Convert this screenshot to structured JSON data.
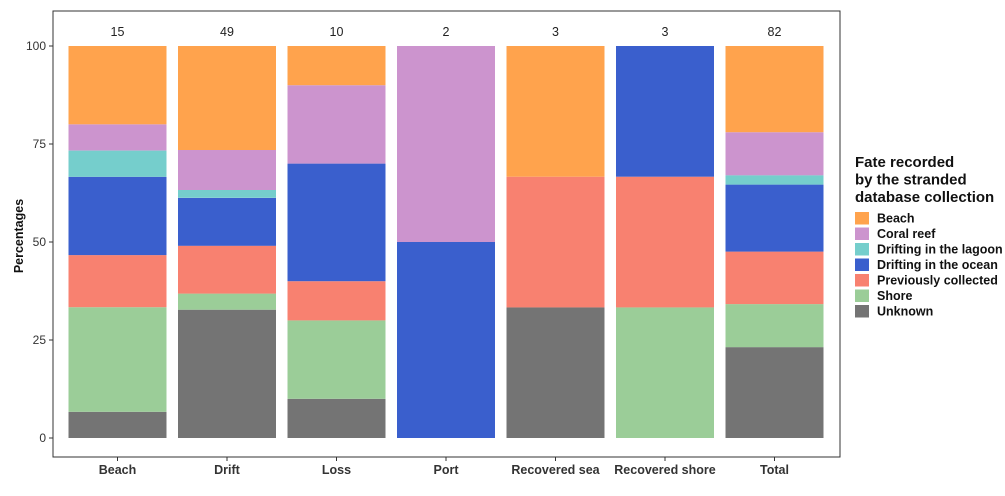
{
  "chart_data": {
    "type": "bar",
    "stacked": true,
    "ylabel": "Percentages",
    "xlabel": "",
    "ylim": [
      0,
      100
    ],
    "yticks": [
      0,
      25,
      50,
      75,
      100
    ],
    "grid": false,
    "legend_position": "right",
    "categories": [
      "Beach",
      "Drift",
      "Loss",
      "Port",
      "Recovered sea",
      "Recovered shore",
      "Total"
    ],
    "counts": [
      "15",
      "49",
      "10",
      "2",
      "3",
      "3",
      "82"
    ],
    "legend": {
      "title_lines": [
        "Fate recorded",
        "by the stranded",
        "database collection"
      ]
    },
    "series": [
      {
        "name": "Beach",
        "color": "#FFA34D",
        "values": [
          20.0,
          26.5,
          10.0,
          0,
          33.3,
          0,
          22.0
        ]
      },
      {
        "name": "Coral reef",
        "color": "#CC94CE",
        "values": [
          6.7,
          10.2,
          20.0,
          50.0,
          0,
          0,
          11.0
        ]
      },
      {
        "name": "Drifting in the lagoon",
        "color": "#75CECC",
        "values": [
          6.7,
          2.0,
          0,
          0,
          0,
          0,
          2.4
        ]
      },
      {
        "name": "Drifting in the ocean",
        "color": "#3A5FCD",
        "values": [
          20.0,
          12.2,
          30.0,
          50.0,
          0,
          33.3,
          17.1
        ]
      },
      {
        "name": "Previously collected",
        "color": "#F88170",
        "values": [
          13.3,
          12.2,
          10.0,
          0,
          33.3,
          33.3,
          13.4
        ]
      },
      {
        "name": "Shore",
        "color": "#9BCD98",
        "values": [
          26.7,
          4.1,
          20.0,
          0,
          0,
          33.3,
          11.0
        ]
      },
      {
        "name": "Unknown",
        "color": "#747474",
        "values": [
          6.7,
          32.7,
          10.0,
          0,
          33.3,
          0,
          23.2
        ]
      }
    ]
  }
}
